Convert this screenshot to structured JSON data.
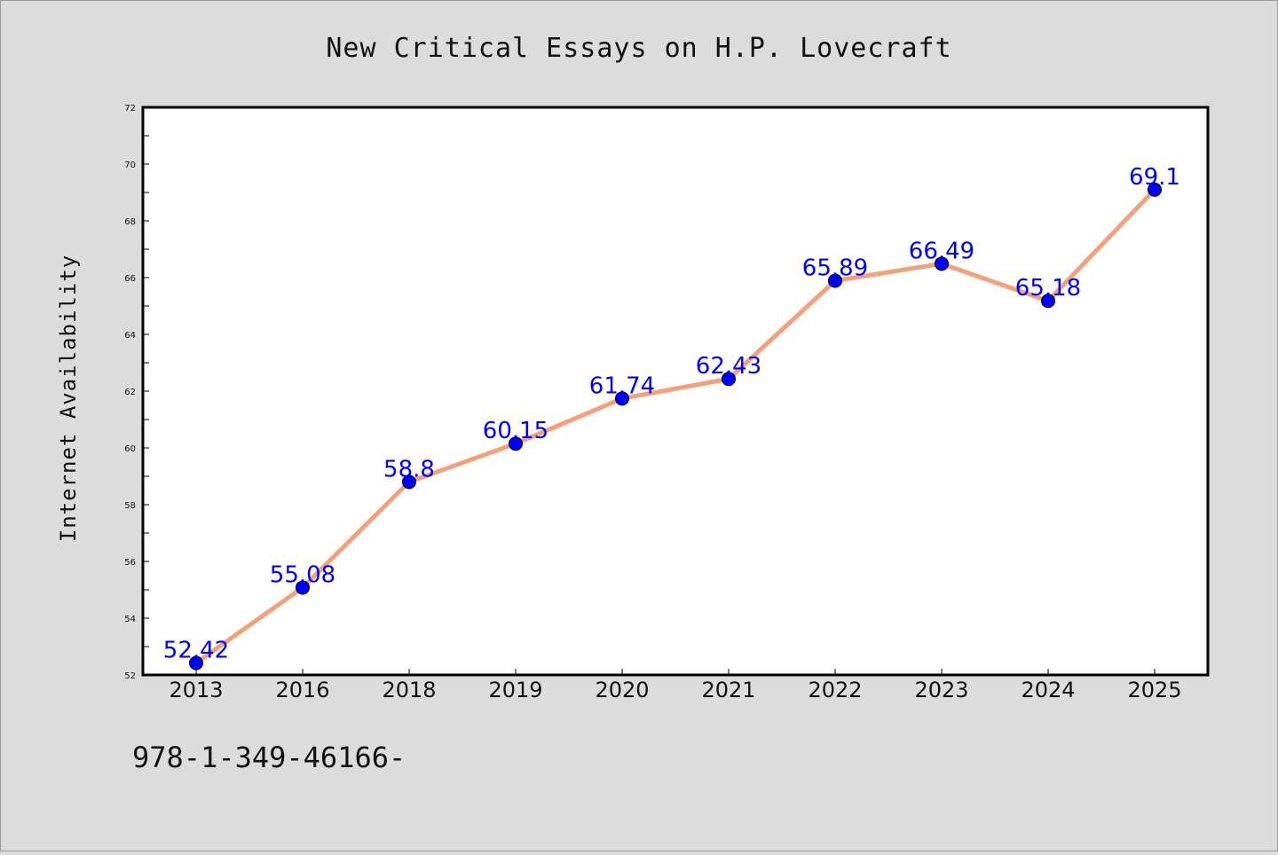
{
  "chart_data": {
    "type": "line",
    "title": "New Critical Essays on H.P. Lovecraft",
    "xlabel": "",
    "ylabel": "Internet Availability",
    "categories": [
      "2013",
      "2016",
      "2018",
      "2019",
      "2020",
      "2021",
      "2022",
      "2023",
      "2024",
      "2025"
    ],
    "values": [
      52.42,
      55.08,
      58.8,
      60.15,
      61.74,
      62.43,
      65.89,
      66.49,
      65.18,
      69.1
    ],
    "data_labels": [
      "52.42",
      "55.08",
      "58.8",
      "60.15",
      "61.74",
      "62.43",
      "65.89",
      "66.49",
      "65.18",
      "69.1"
    ],
    "ylim": [
      52,
      72
    ],
    "yticks": [
      52,
      54,
      56,
      58,
      60,
      62,
      64,
      66,
      68,
      70,
      72
    ],
    "grid": false,
    "legend": "none",
    "colors": {
      "line": "#f4a07a",
      "marker": "#0000ff",
      "label": "#0000ff",
      "plot_background": "#ffffff",
      "page_background": "#dcdcdc"
    }
  },
  "footer": {
    "text": "978-1-349-46166-"
  }
}
